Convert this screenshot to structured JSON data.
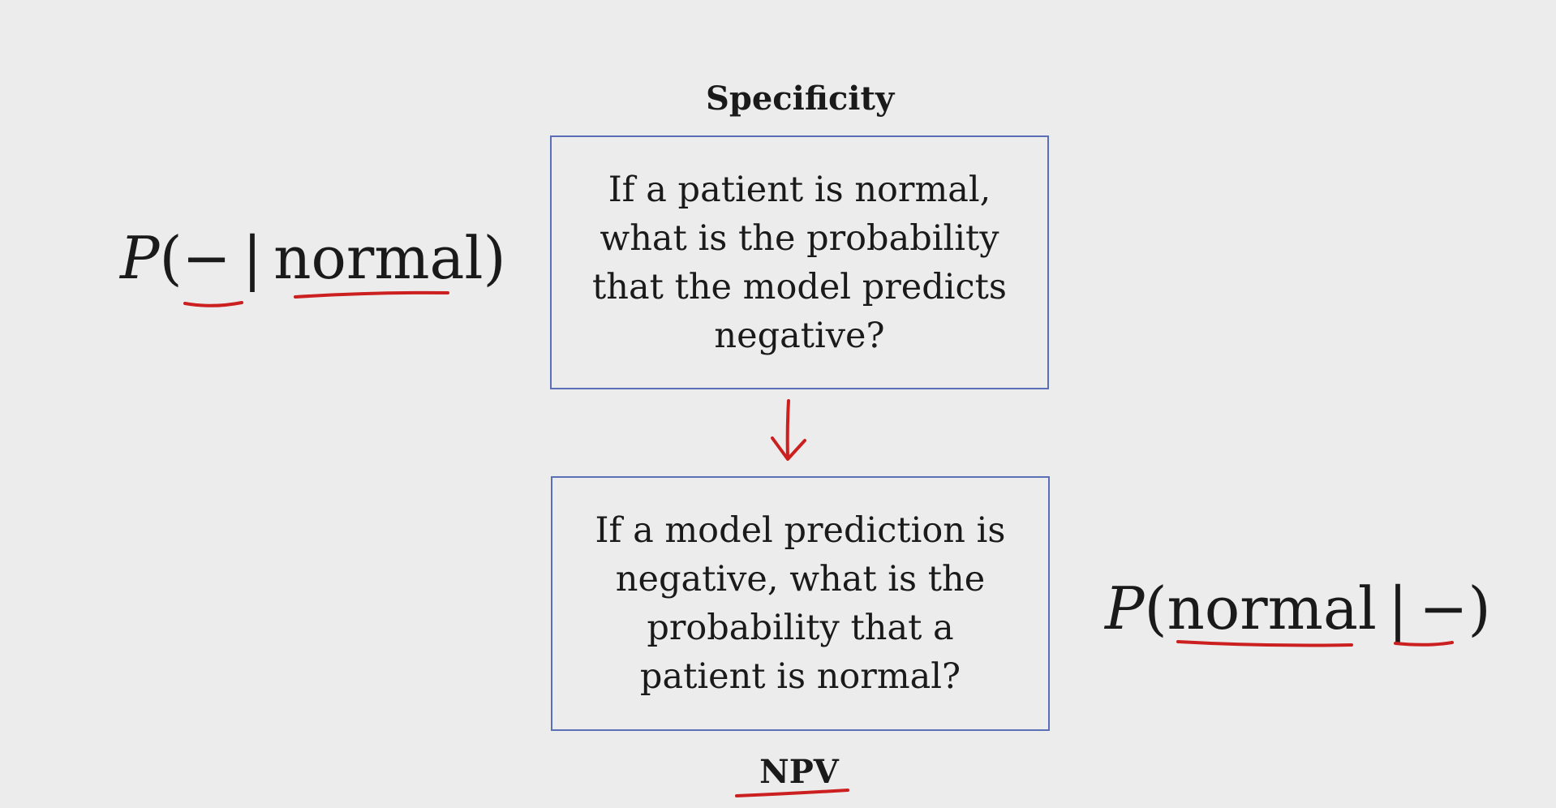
{
  "top_label": "Specificity",
  "bottom_label": "NPV",
  "top_box": {
    "lines": [
      "If a patient is normal,",
      "what is the probability",
      "that the model predicts",
      "negative?"
    ]
  },
  "bottom_box": {
    "lines": [
      "If a model prediction is",
      "negative, what is the",
      "probability that a",
      "patient is normal?"
    ]
  },
  "left_formula": {
    "p": "P",
    "open": "(",
    "first": "−",
    "bar": "|",
    "second": "normal",
    "close": ")"
  },
  "right_formula": {
    "p": "P",
    "open": "(",
    "first": "normal",
    "bar": "|",
    "second": "−",
    "close": ")"
  },
  "colors": {
    "background": "#ececec",
    "box_border": "#5a6fb5",
    "annotation_ink": "#cc1f1f",
    "text": "#1a1a1a"
  }
}
